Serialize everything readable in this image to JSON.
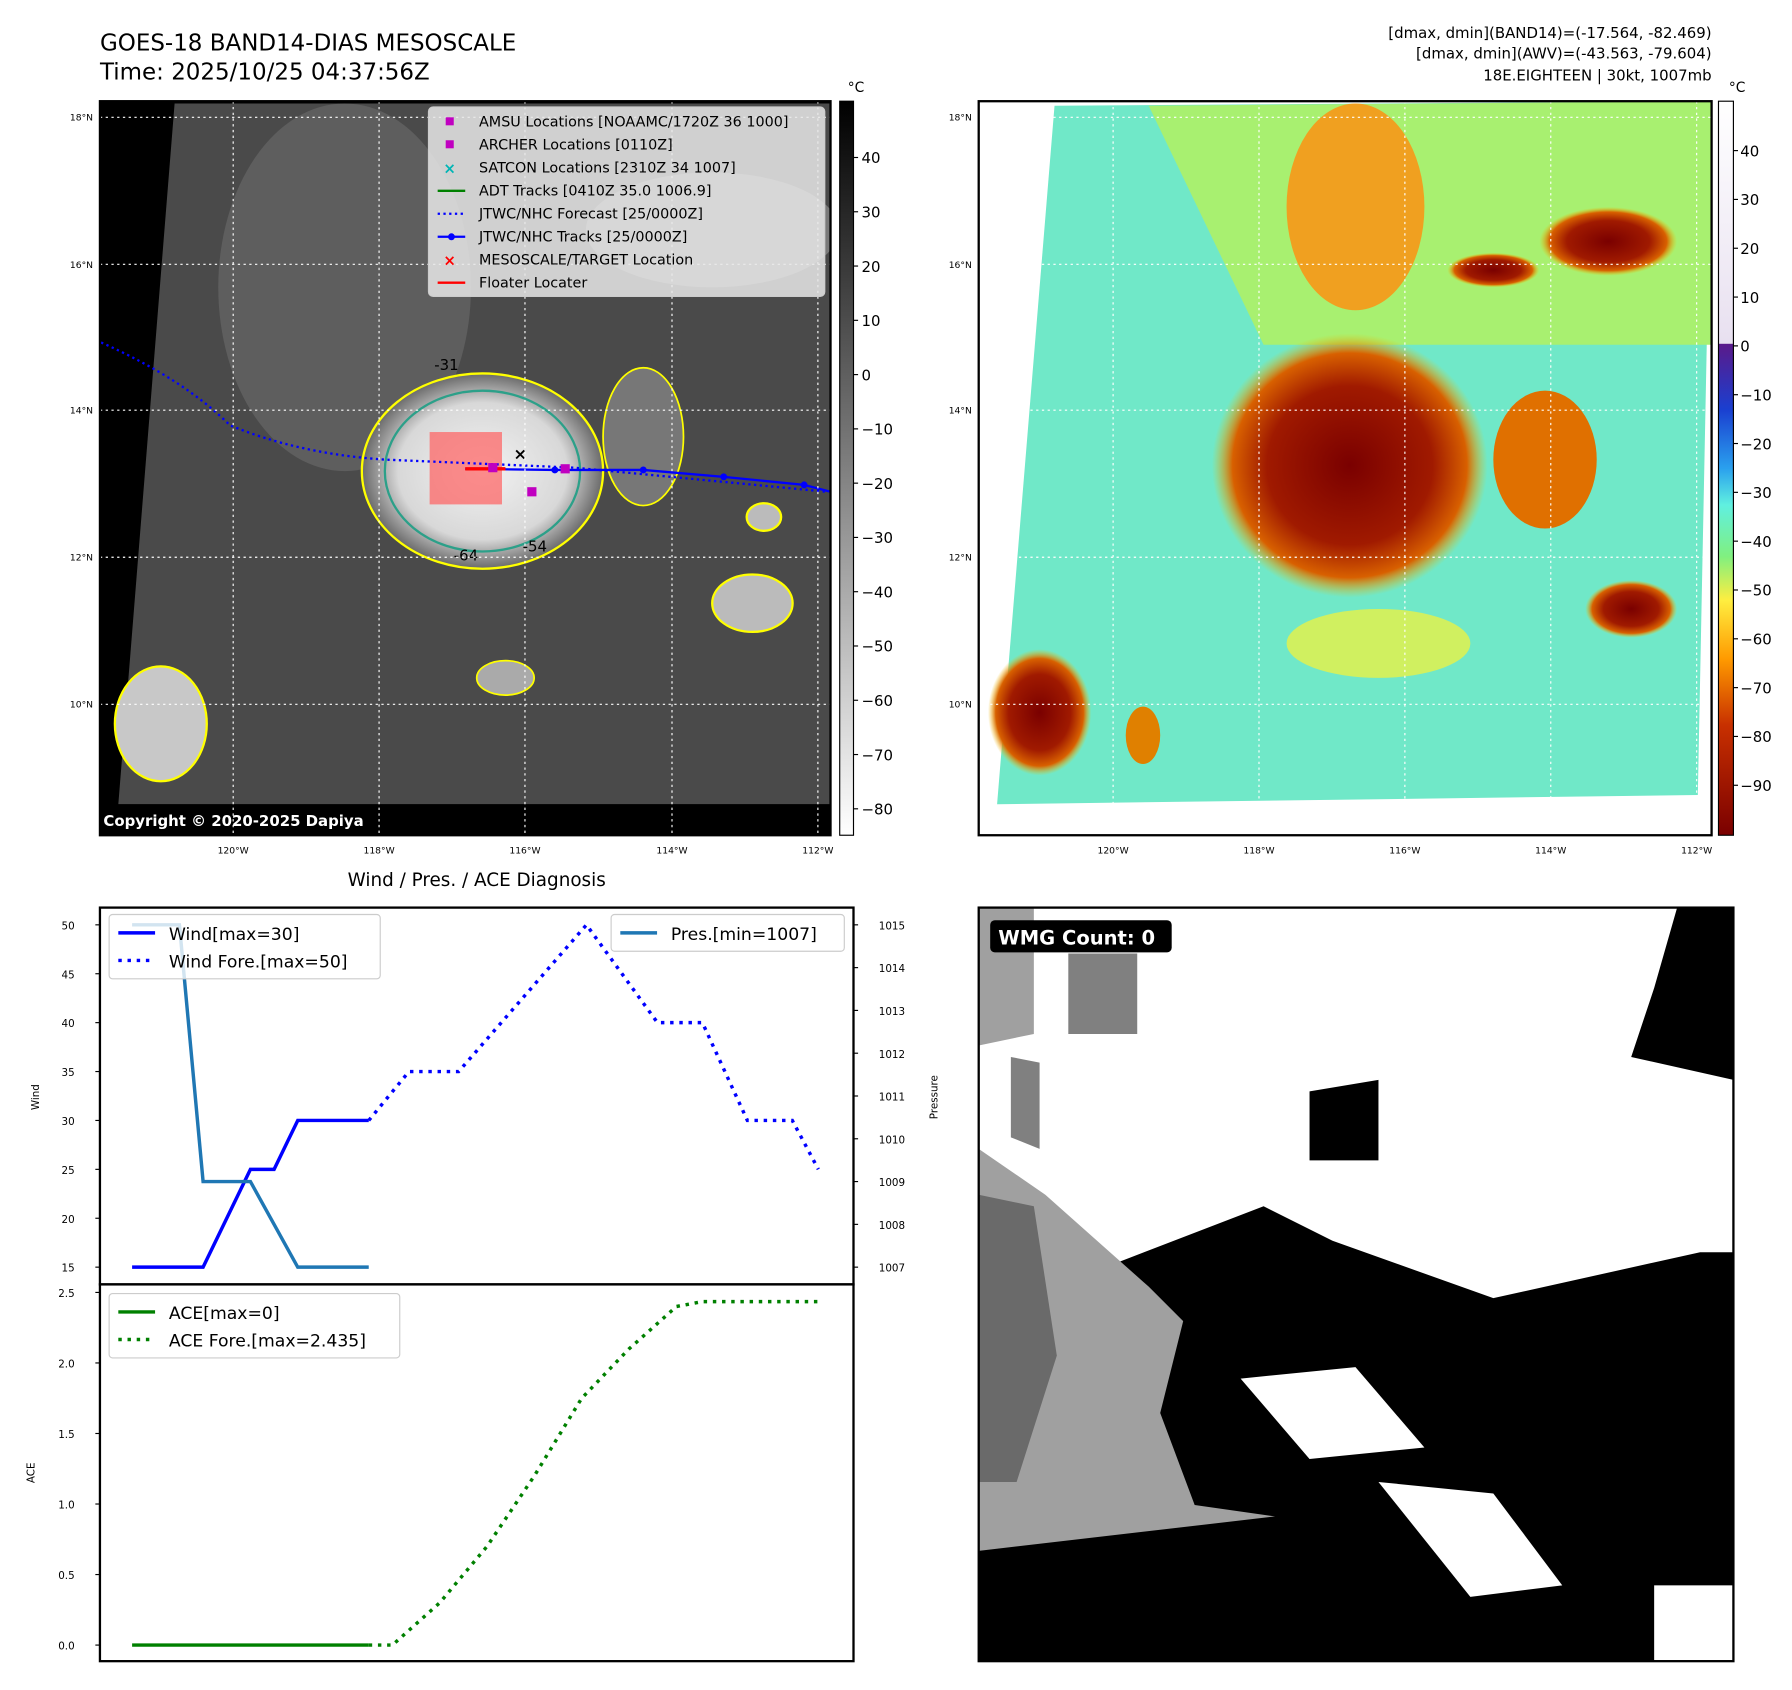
{
  "header": {
    "title": "GOES-18 BAND14-DIAS MESOSCALE",
    "time": "Time: 2025/10/25 04:37:56Z",
    "stats_line1": "[dmax, dmin](BAND14)=(-17.564, -82.469)",
    "stats_line2": "[dmax, dmin](AWV)=(-43.563, -79.604)",
    "storm_line": "18E.EIGHTEEN | 30kt, 1007mb"
  },
  "map": {
    "lat_labels": [
      "18°N",
      "16°N",
      "14°N",
      "12°N",
      "10°N"
    ],
    "lon_labels": [
      "120°W",
      "118°W",
      "116°W",
      "114°W",
      "112°W"
    ],
    "copyright": "Copyright © 2020-2025 Dapiya",
    "contour_labels": [
      "-31",
      "-54",
      "-64"
    ],
    "legend": [
      {
        "label": "AMSU Locations [NOAAMC/1720Z 36 1000]",
        "color": "#c000c0",
        "marker": "square"
      },
      {
        "label": "ARCHER Locations [0110Z]",
        "color": "#c000c0",
        "marker": "square"
      },
      {
        "label": "SATCON Locations [2310Z 34 1007]",
        "color": "#00b5b5",
        "marker": "x"
      },
      {
        "label": "ADT Tracks [0410Z 35.0 1006.9]",
        "color": "#008000",
        "marker": "line"
      },
      {
        "label": "JTWC/NHC Forecast [25/0000Z]",
        "color": "#0000ff",
        "marker": "dotted"
      },
      {
        "label": "JTWC/NHC Tracks [25/0000Z]",
        "color": "#0000ff",
        "marker": "line-dot"
      },
      {
        "label": "MESOSCALE/TARGET Location",
        "color": "#ff0000",
        "marker": "x"
      },
      {
        "label": "Floater Locater",
        "color": "#ff0000",
        "marker": "line"
      }
    ],
    "colorbar_unit": "°C",
    "colorbar_left_ticks": [
      "40",
      "30",
      "20",
      "10",
      "0",
      "−10",
      "−20",
      "−30",
      "−40",
      "−50",
      "−60",
      "−70",
      "−80"
    ],
    "colorbar_right_ticks": [
      "40",
      "30",
      "20",
      "10",
      "0",
      "−10",
      "−20",
      "−30",
      "−40",
      "−50",
      "−60",
      "−70",
      "−80",
      "−90"
    ]
  },
  "wmg": {
    "label": "WMG Count: 0"
  },
  "colors": {
    "wind": "#0000ff",
    "pres": "#1f77b4",
    "ace": "#008000",
    "contour_yellow": "#ffff00",
    "contour_green": "#2ca089"
  },
  "chart_data": {
    "type": "line",
    "title": "Wind / Pres. / ACE Diagnosis",
    "panels": [
      {
        "ylabel": "Wind",
        "ylim": [
          15,
          50
        ],
        "yticks": [
          "15",
          "20",
          "25",
          "30",
          "35",
          "40",
          "45",
          "50"
        ],
        "y2label": "Pressure",
        "y2lim": [
          1007,
          1015
        ],
        "y2ticks": [
          "1007",
          "1008",
          "1009",
          "1010",
          "1011",
          "1012",
          "1013",
          "1014",
          "1015"
        ],
        "series": [
          {
            "name": "Wind[max=30]",
            "axis": "left",
            "style": "solid",
            "color": "#0000ff",
            "x": [
              0,
              3,
              5,
              6,
              7,
              10
            ],
            "y": [
              15,
              15,
              25,
              25,
              30,
              30
            ]
          },
          {
            "name": "Wind Fore.[max=50]",
            "axis": "left",
            "style": "dotted",
            "color": "#0000ff",
            "x": [
              10,
              11.7,
              13.8,
              19.2,
              22.2,
              24.1,
              26,
              27.9,
              29
            ],
            "y": [
              30,
              35,
              35,
              50,
              40,
              40,
              30,
              30,
              25
            ]
          },
          {
            "name": "Pres.[min=1007]",
            "axis": "right",
            "style": "solid",
            "color": "#1f77b4",
            "x": [
              0,
              2,
              3,
              5,
              7,
              10
            ],
            "y": [
              1015,
              1015,
              1009,
              1009,
              1007,
              1007
            ]
          }
        ]
      },
      {
        "ylabel": "ACE",
        "ylim": [
          0,
          2.5
        ],
        "yticks": [
          "0.0",
          "0.5",
          "1.0",
          "1.5",
          "2.0",
          "2.5"
        ],
        "series": [
          {
            "name": "ACE[max=0]",
            "style": "solid",
            "color": "#008000",
            "x": [
              0,
              10
            ],
            "y": [
              0,
              0
            ]
          },
          {
            "name": "ACE Fore.[max=2.435]",
            "style": "dotted",
            "color": "#008000",
            "x": [
              10,
              11,
              13,
              15,
              17,
              19,
              21,
              23,
              24.1,
              29
            ],
            "y": [
              0,
              0,
              0.3,
              0.7,
              1.2,
              1.75,
              2.1,
              2.4,
              2.435,
              2.435
            ]
          }
        ]
      }
    ],
    "xlim": [
      -1.5,
      30.5
    ]
  }
}
